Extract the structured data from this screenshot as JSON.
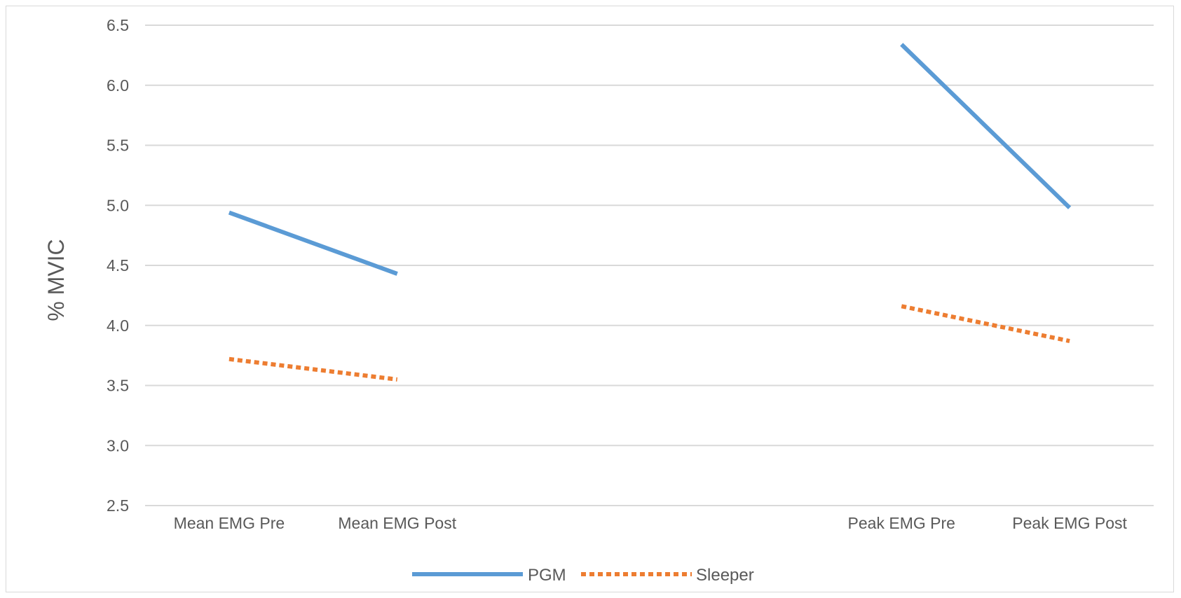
{
  "chart_data": {
    "type": "line",
    "title": "",
    "xlabel": "",
    "ylabel": "% MVIC",
    "ylim": [
      2.5,
      6.5
    ],
    "yticks": [
      "2.5",
      "3.0",
      "3.5",
      "4.0",
      "4.5",
      "5.0",
      "5.5",
      "6.0",
      "6.5"
    ],
    "grid": true,
    "legend_position": "bottom",
    "categories": [
      "Mean EMG Pre",
      "Mean EMG Post",
      "",
      "",
      "Peak EMG Pre",
      "Peak EMG Post"
    ],
    "series": [
      {
        "name": "PGM",
        "color": "#5b9bd5",
        "style": "solid",
        "segments": [
          {
            "x": [
              "Mean EMG Pre",
              "Mean EMG Post"
            ],
            "values": [
              4.94,
              4.43
            ]
          },
          {
            "x": [
              "Peak EMG Pre",
              "Peak EMG Post"
            ],
            "values": [
              6.34,
              4.98
            ]
          }
        ]
      },
      {
        "name": "Sleeper",
        "color": "#ed7d31",
        "style": "dotted",
        "segments": [
          {
            "x": [
              "Mean EMG Pre",
              "Mean EMG Post"
            ],
            "values": [
              3.72,
              3.55
            ]
          },
          {
            "x": [
              "Peak EMG Pre",
              "Peak EMG Post"
            ],
            "values": [
              4.16,
              3.87
            ]
          }
        ]
      }
    ]
  }
}
